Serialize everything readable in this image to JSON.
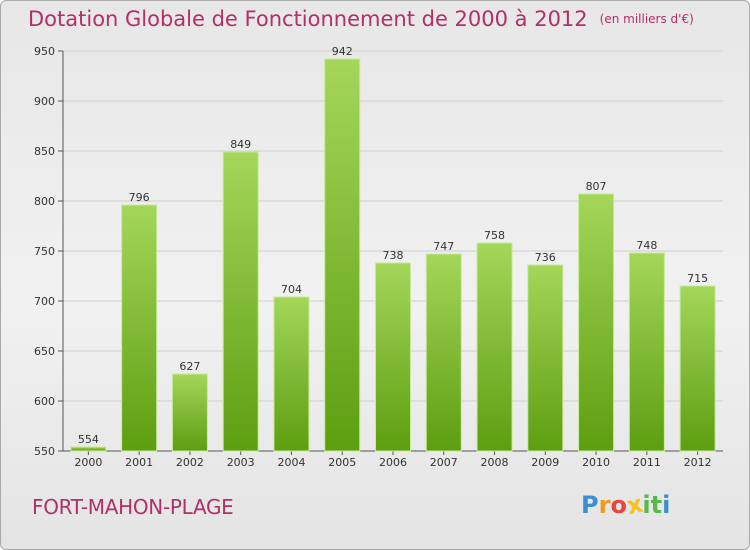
{
  "title": "Dotation Globale de Fonctionnement de 2000 à 2012",
  "unit_note": "(en milliers d'€)",
  "city": "FORT-MAHON-PLAGE",
  "logo": {
    "letters": [
      "P",
      "r",
      "o",
      "x",
      "i",
      "t",
      "i"
    ],
    "colors": [
      "#3a8fd1",
      "#f39a1e",
      "#e8473c",
      "#f5c21b",
      "#57b94a",
      "#57b94a",
      "#3a8fd1"
    ]
  },
  "colors": {
    "bar_top": "#a4d65a",
    "bar_bottom": "#5d9e10",
    "bar_edge": "#c9ea9a",
    "accent": "#b0306a",
    "grid": "#cfcfcf"
  },
  "chart_data": {
    "type": "bar",
    "categories": [
      "2000",
      "2001",
      "2002",
      "2003",
      "2004",
      "2005",
      "2006",
      "2007",
      "2008",
      "2009",
      "2010",
      "2011",
      "2012"
    ],
    "values": [
      554,
      796,
      627,
      849,
      704,
      942,
      738,
      747,
      758,
      736,
      807,
      748,
      715
    ],
    "data_labels": [
      "554",
      "796",
      "627",
      "849",
      "704",
      "942",
      "738",
      "747",
      "758",
      "736",
      "807",
      "748",
      "715"
    ],
    "title": "Dotation Globale de Fonctionnement de 2000 à 2012",
    "ylim": [
      550,
      950
    ],
    "yticks": [
      550,
      600,
      650,
      700,
      750,
      800,
      850,
      900,
      950
    ],
    "ytick_labels": [
      "550",
      "600",
      "650",
      "700",
      "750",
      "800",
      "850",
      "900",
      "950"
    ],
    "grid": true
  }
}
